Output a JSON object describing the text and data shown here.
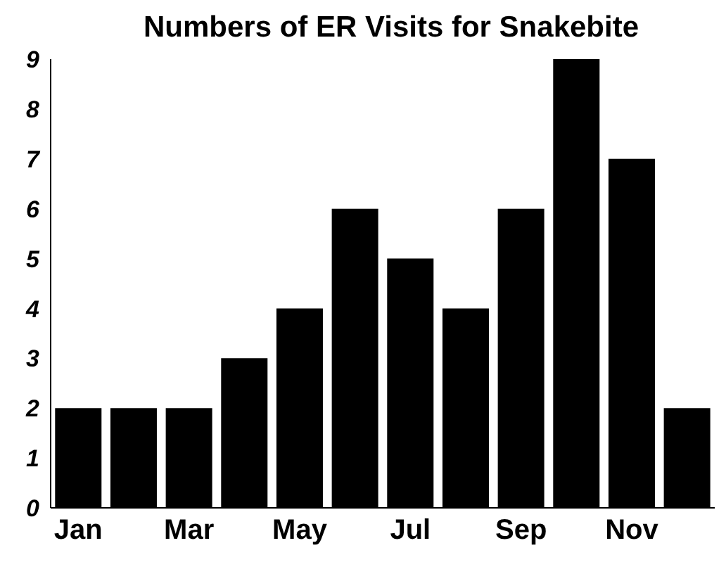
{
  "chart_data": {
    "type": "bar",
    "title": "Numbers of ER Visits for Snakebite",
    "categories": [
      "Jan",
      null,
      "Mar",
      null,
      "May",
      null,
      "Jul",
      null,
      "Sep",
      null,
      "Nov",
      null
    ],
    "values": [
      2,
      2,
      2,
      3,
      4,
      6,
      5,
      4,
      6,
      9,
      7,
      2
    ],
    "color": "#000000",
    "ylim": [
      0,
      9
    ],
    "yticks": [
      0,
      1,
      2,
      3,
      4,
      5,
      6,
      7,
      8,
      9
    ],
    "grid": false
  }
}
